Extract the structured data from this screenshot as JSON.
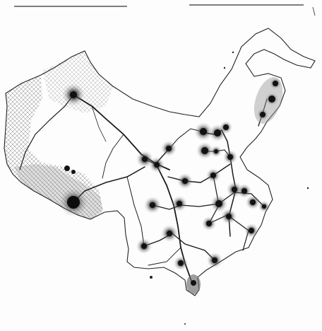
{
  "image": {
    "subject": "slime-mould-network-on-map-outline",
    "colors": {
      "background": "#fdfdfd",
      "network": "#1a1a1a",
      "node": "#111111",
      "halo": "#666666",
      "outline": "#222222"
    }
  }
}
